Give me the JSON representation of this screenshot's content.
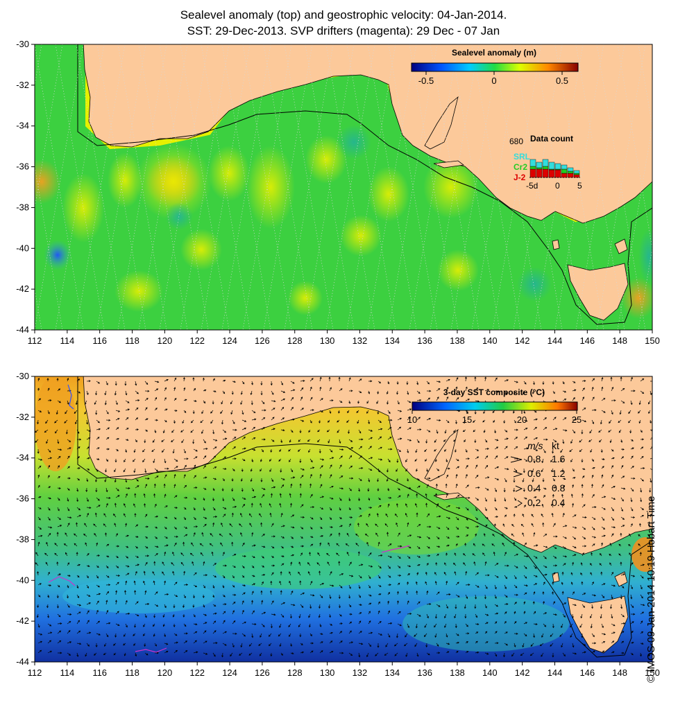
{
  "title_line1": "Sealevel anomaly (top) and geostrophic velocity: 04-Jan-2014.",
  "title_line2": "SST: 29-Dec-2013. SVP drifters (magenta): 29 Dec - 07 Jan",
  "lon_ticks": [
    "112",
    "114",
    "116",
    "118",
    "120",
    "122",
    "124",
    "126",
    "128",
    "130",
    "132",
    "134",
    "136",
    "138",
    "140",
    "142",
    "144",
    "146",
    "148",
    "150"
  ],
  "lat_ticks": [
    "-30",
    "-32",
    "-34",
    "-36",
    "-38",
    "-40",
    "-42",
    "-44"
  ],
  "top_colorbar": {
    "title": "Sealevel anomaly (m)",
    "labels": [
      "-0.5",
      "0",
      "0.5"
    ]
  },
  "bottom_colorbar": {
    "title": "3-day SST composite (°C)",
    "labels": [
      "10",
      "15",
      "20",
      "25"
    ]
  },
  "data_count": {
    "title": "Data count",
    "max": "680",
    "missions": [
      {
        "name": "SRL",
        "color": "#33dddd"
      },
      {
        "name": "Cr2",
        "color": "#22cc22"
      },
      {
        "name": "J-2",
        "color": "#dd0000"
      }
    ],
    "axis": [
      "-5d",
      "0",
      "5"
    ]
  },
  "speed_legend": {
    "header_ms": "m/s",
    "header_kt": "kt",
    "rows": [
      {
        "ms": "0.8",
        "kt": "1.6"
      },
      {
        "ms": "0.6",
        "kt": "1.2"
      },
      {
        "ms": "0.4",
        "kt": "0.8"
      },
      {
        "ms": "0.2",
        "kt": "0.4"
      }
    ]
  },
  "credit": "© IMOS 09-Jan-2014 10:19 Hobart Time",
  "colors": {
    "land": "#fcc99a",
    "coast_line": "#000000",
    "drifter": "#cc33cc"
  }
}
